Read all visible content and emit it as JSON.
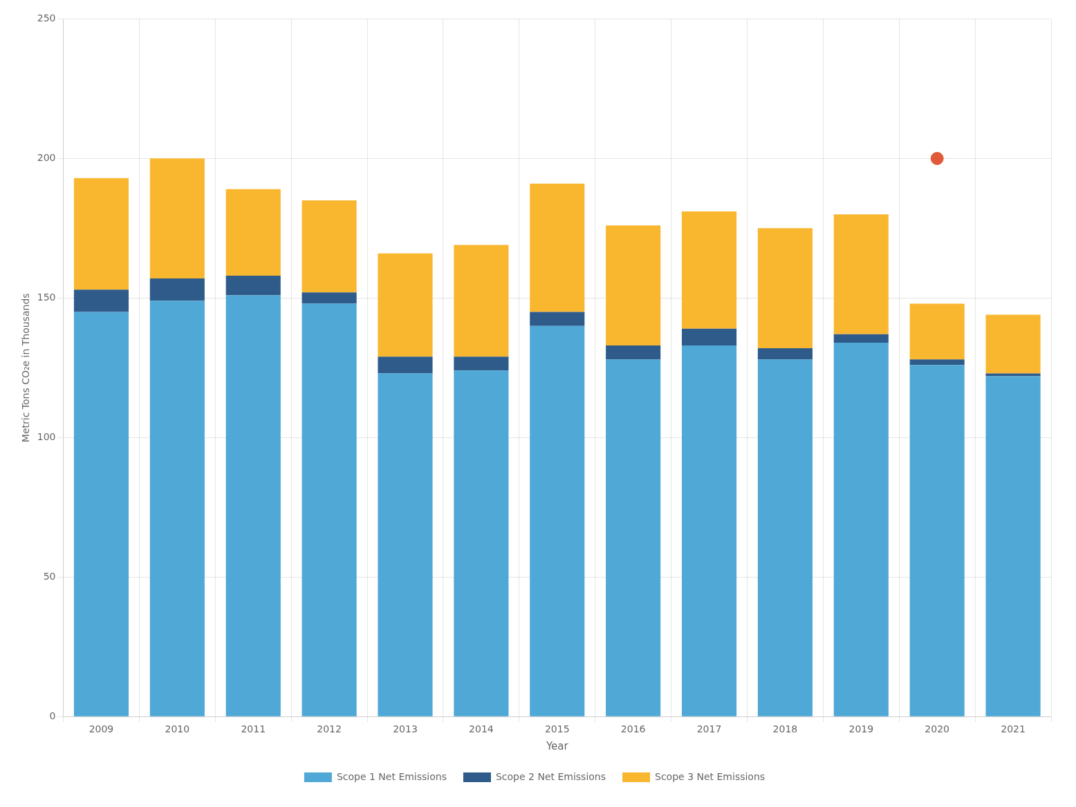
{
  "chart_data": {
    "type": "bar",
    "xlabel": "Year",
    "ylabel": "Metric Tons CO₂e in Thousands",
    "categories": [
      "2009",
      "2010",
      "2011",
      "2012",
      "2013",
      "2014",
      "2015",
      "2016",
      "2017",
      "2018",
      "2019",
      "2020",
      "2021"
    ],
    "series": [
      {
        "name": "Scope 1 Net Emissions",
        "color": "#4FA8D5",
        "values": [
          145,
          149,
          151,
          148,
          123,
          124,
          140,
          128,
          133,
          128,
          134,
          126,
          122
        ]
      },
      {
        "name": "Scope 2 Net Emissions",
        "color": "#2E5B8A",
        "values": [
          8,
          8,
          7,
          4,
          6,
          5,
          5,
          5,
          6,
          4,
          3,
          2,
          1
        ]
      },
      {
        "name": "Scope 3 Net Emissions",
        "color": "#F9B730",
        "values": [
          40,
          43,
          31,
          33,
          37,
          40,
          46,
          43,
          42,
          43,
          43,
          20,
          21
        ]
      },
      {
        "type": "scatter",
        "color": "#E05A3A",
        "marker": "circle",
        "values": [
          null,
          null,
          null,
          null,
          null,
          null,
          null,
          null,
          null,
          null,
          null,
          200,
          null
        ]
      }
    ],
    "ylim": [
      0,
      250
    ],
    "yticks": [
      0,
      50,
      100,
      150,
      200,
      250
    ],
    "grid": true,
    "stacked": true,
    "legend": "bottom"
  }
}
